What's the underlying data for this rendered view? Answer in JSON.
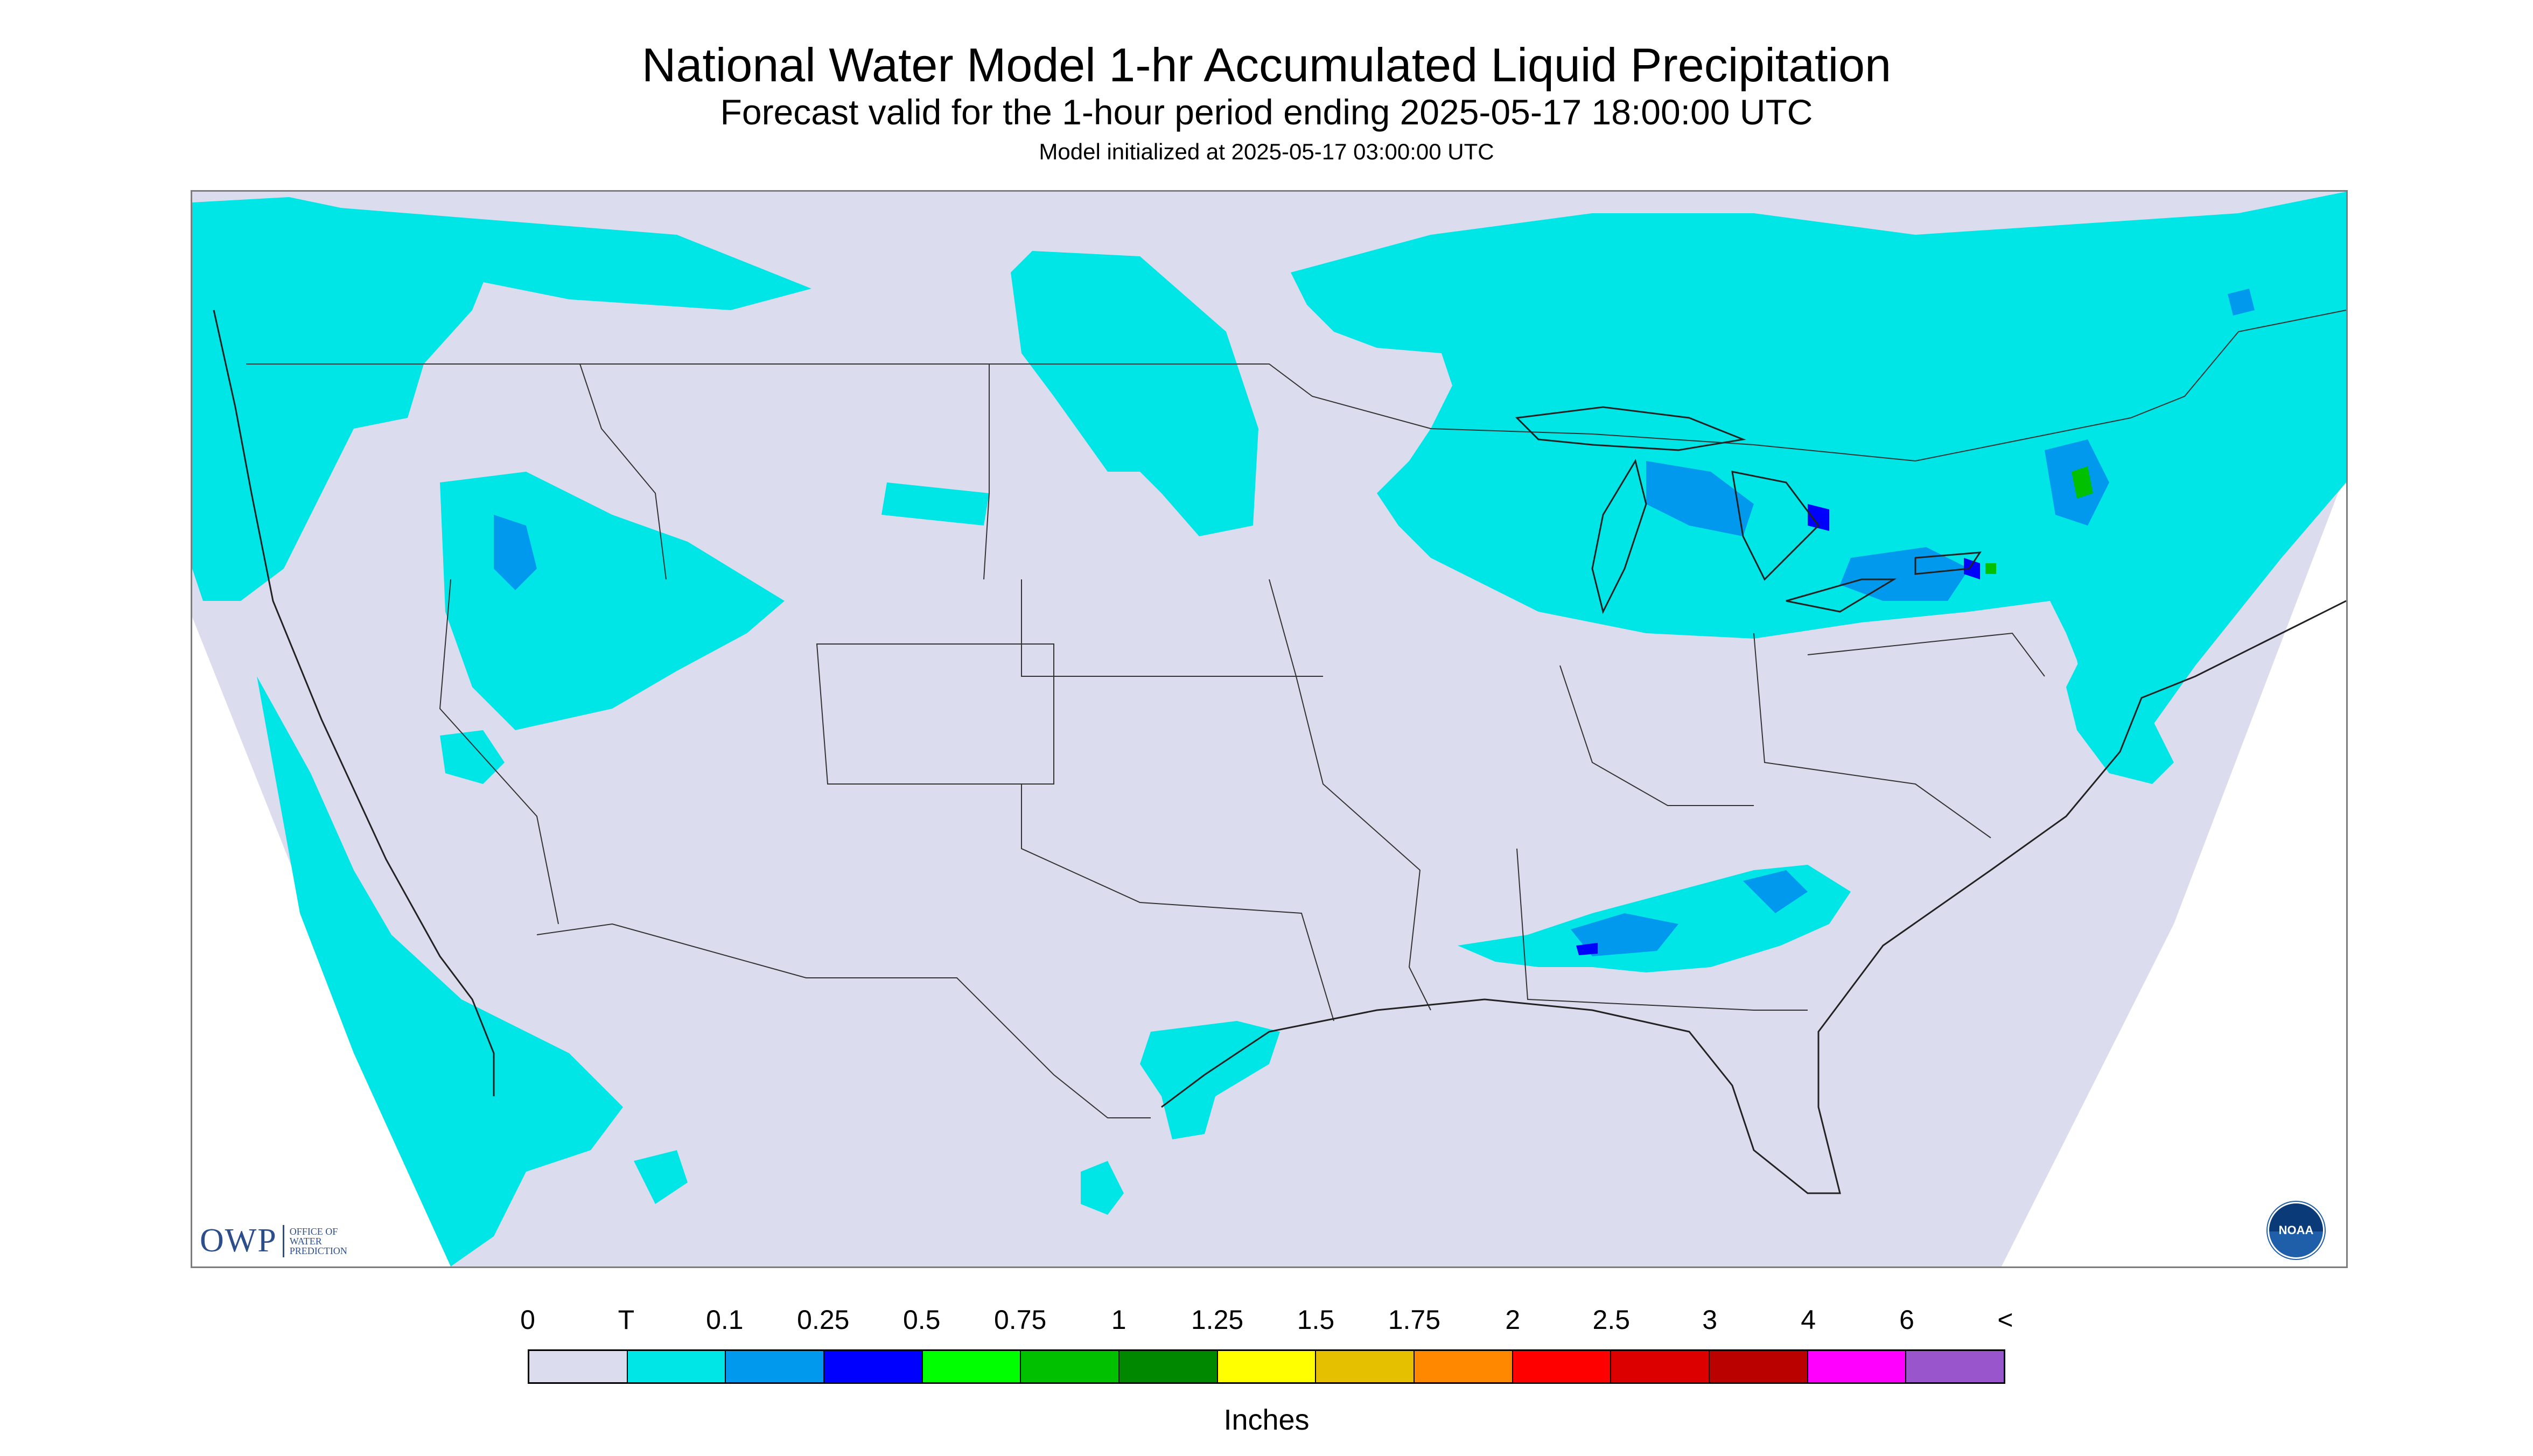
{
  "title": "National Water Model 1-hr Accumulated Liquid Precipitation",
  "subtitle": "Forecast valid for the 1-hour period ending 2025-05-17 18:00:00 UTC",
  "init": "Model initialized at 2025-05-17 03:00:00 UTC",
  "logos": {
    "owp_big": "OWP",
    "owp_small": [
      "OFFICE OF",
      "WATER",
      "PREDICTION"
    ],
    "noaa": "NOAA"
  },
  "legend": {
    "labels": [
      "0",
      "T",
      "0.1",
      "0.25",
      "0.5",
      "0.75",
      "1",
      "1.25",
      "1.5",
      "1.75",
      "2",
      "2.5",
      "3",
      "4",
      "6",
      "<"
    ],
    "colors": [
      "#dcdcef",
      "#00e5e5",
      "#0099ee",
      "#0000ff",
      "#00ff00",
      "#00c000",
      "#008800",
      "#ffff00",
      "#e5c000",
      "#ff8800",
      "#ff0000",
      "#dd0000",
      "#bb0000",
      "#ff00ff",
      "#9955cc"
    ],
    "units": "Inches"
  },
  "map": {
    "background_color": "#dcdcef",
    "outside_color": "#ffffff",
    "trace_color": "#00e5e5",
    "light_color": "#0099ee",
    "moderate_color": "#0000ff",
    "heavy_color": "#00c000"
  }
}
